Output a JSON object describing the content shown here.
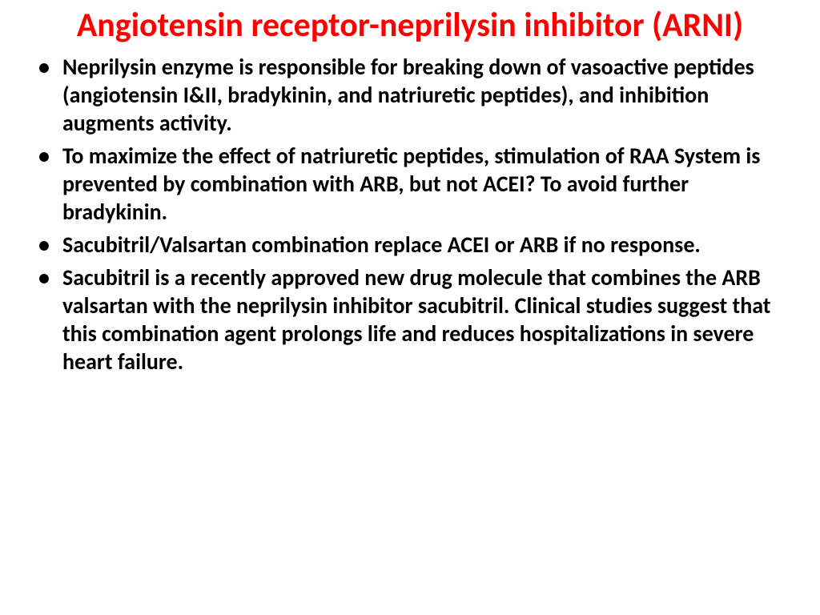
{
  "slide": {
    "title": "Angiotensin receptor-neprilysin inhibitor (ARNI)",
    "title_color": "#ff0000",
    "title_fontsize": 42,
    "background_color": "#ffffff",
    "bullets": [
      {
        "text": "Neprilysin enzyme is responsible for breaking down of vasoactive peptides (angiotensin I&II, bradykinin, and natriuretic peptides), and inhibition augments activity."
      },
      {
        "text": "To maximize the effect of natriuretic peptides, stimulation of RAA System is prevented by combination with ARB, but not ACEI? To avoid further bradykinin."
      },
      {
        "text": "Sacubitril/Valsartan combination replace ACEI or ARB if no response."
      },
      {
        "text": "Sacubitril is a recently approved new drug molecule that combines the ARB valsartan with the neprilysin inhibitor sacubitril. Clinical studies suggest that this combination agent prolongs life and reduces hospitalizations in severe heart failure."
      }
    ],
    "bullet_marker": "•",
    "bullet_text_color": "#000000",
    "bullet_fontsize": 28,
    "bullet_fontweight": "bold"
  }
}
